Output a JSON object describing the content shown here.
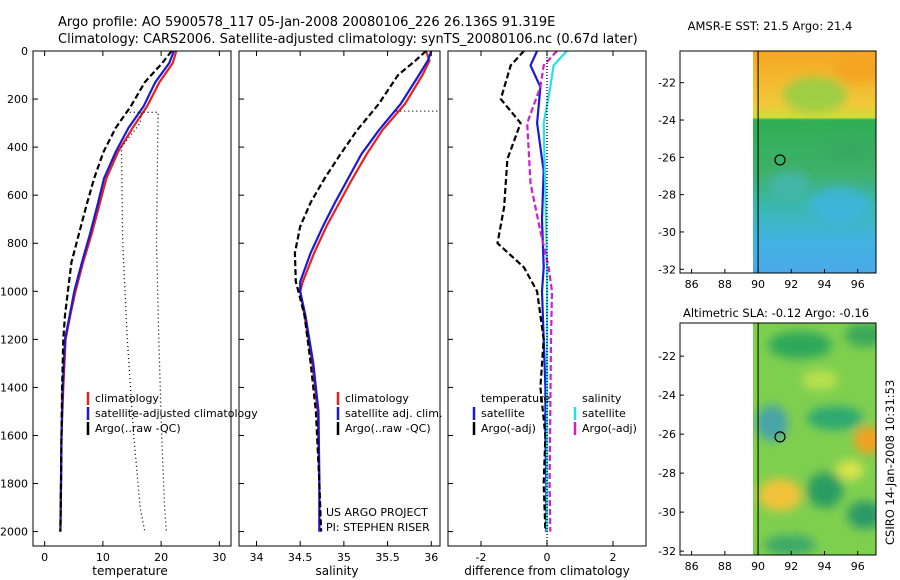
{
  "title": {
    "line1": "Argo profile: AO 5900578_117 05-Jan-2008 20080106_226 26.136S 91.319E",
    "line2": "Climatology: CARS2006. Satellite-adjusted climatology: synTS_20080106.nc (0.67d later)"
  },
  "credit_vertical": "CSIRO 14-Jan-2008 10:31:53",
  "chart_data": [
    {
      "id": "temperature",
      "type": "line",
      "xlabel": "temperature",
      "ylabel": "",
      "xlim": [
        -2,
        32
      ],
      "ylim": [
        0,
        2060
      ],
      "y_inverted": true,
      "xticks": [
        0,
        10,
        20,
        30
      ],
      "yticks": [
        0,
        200,
        400,
        600,
        800,
        1000,
        1200,
        1400,
        1600,
        1800,
        2000
      ],
      "legend": [
        "climatology",
        "satellite-adjusted climatology",
        "Argo(..raw -QC)"
      ],
      "series": [
        {
          "name": "climatology",
          "color": "#e8211c",
          "dash": "",
          "x": [
            22.6,
            22.0,
            19.7,
            17.6,
            15.1,
            12.6,
            10.6,
            9.4,
            8.1,
            6.6,
            5.3,
            4.4,
            3.6,
            3.2,
            2.9,
            2.8,
            2.7
          ],
          "y": [
            0,
            50,
            130,
            230,
            320,
            420,
            530,
            640,
            760,
            880,
            1000,
            1100,
            1200,
            1400,
            1600,
            1800,
            2000
          ]
        },
        {
          "name": "satellite-adjusted climatology",
          "color": "#1a1ad6",
          "dash": "",
          "x": [
            22.2,
            21.4,
            19.0,
            17.0,
            14.4,
            12.2,
            10.2,
            9.1,
            7.8,
            6.4,
            5.1,
            4.3,
            3.5,
            3.1,
            2.9,
            2.8,
            2.7
          ],
          "y": [
            0,
            50,
            130,
            230,
            320,
            420,
            530,
            640,
            760,
            880,
            1000,
            1100,
            1200,
            1400,
            1600,
            1800,
            2000
          ]
        },
        {
          "name": "Argo(..raw -QC)",
          "color": "#000000",
          "dash": "6 3",
          "x": [
            21.8,
            20.2,
            17.2,
            14.8,
            12.2,
            10.1,
            8.5,
            7.2,
            5.9,
            4.6,
            4.0,
            3.5,
            3.2,
            3.0,
            2.9,
            2.8,
            2.7
          ],
          "y": [
            0,
            50,
            130,
            230,
            320,
            420,
            530,
            640,
            760,
            880,
            1000,
            1100,
            1200,
            1400,
            1600,
            1800,
            2000
          ]
        },
        {
          "name": "bound-left",
          "color": "#000000",
          "dash": "1 3",
          "x": [
            14.6,
            16.6,
            16.4,
            13.2,
            13.4,
            14.2,
            15.3,
            16.4,
            17.2
          ],
          "y": [
            255,
            255,
            300,
            400,
            800,
            1200,
            1600,
            1900,
            2000
          ]
        },
        {
          "name": "bound-right",
          "color": "#000000",
          "dash": "1 3",
          "x": [
            17.0,
            19.5,
            19.4,
            19.2,
            19.6,
            20.1,
            20.6,
            20.9
          ],
          "y": [
            255,
            255,
            400,
            800,
            1200,
            1600,
            1900,
            2000
          ]
        }
      ]
    },
    {
      "id": "salinity",
      "type": "line",
      "xlabel": "salinity",
      "xlim": [
        33.8,
        36.1
      ],
      "ylim": [
        0,
        2060
      ],
      "y_inverted": true,
      "xticks": [
        34,
        34.5,
        35,
        35.5,
        36
      ],
      "legend": [
        "climatology",
        "satellite adj. clim.",
        "Argo(..raw -QC)"
      ],
      "annotations": [
        "US ARGO PROJECT",
        "PI: STEPHEN RISER"
      ],
      "series": [
        {
          "name": "climatology",
          "color": "#e8211c",
          "dash": "",
          "x": [
            35.94,
            35.98,
            35.9,
            35.7,
            35.44,
            35.26,
            35.1,
            34.95,
            34.8,
            34.66,
            34.53,
            34.5,
            34.55,
            34.64,
            34.7,
            34.72,
            34.72
          ],
          "y": [
            0,
            40,
            100,
            220,
            330,
            430,
            530,
            630,
            730,
            840,
            960,
            1000,
            1100,
            1300,
            1500,
            1800,
            2000
          ]
        },
        {
          "name": "satellite adj. clim.",
          "color": "#1a1ad6",
          "dash": "",
          "x": [
            36.0,
            35.96,
            35.86,
            35.65,
            35.4,
            35.2,
            35.05,
            34.9,
            34.76,
            34.62,
            34.5,
            34.5,
            34.56,
            34.65,
            34.71,
            34.72,
            34.72
          ],
          "y": [
            0,
            40,
            100,
            220,
            330,
            430,
            530,
            630,
            730,
            840,
            960,
            1000,
            1100,
            1300,
            1500,
            1800,
            2000
          ]
        },
        {
          "name": "Argo(..raw -QC)",
          "color": "#000000",
          "dash": "6 3",
          "x": [
            35.94,
            35.82,
            35.62,
            35.4,
            35.15,
            34.96,
            34.78,
            34.62,
            34.5,
            34.44,
            34.45,
            34.48,
            34.55,
            34.62,
            34.68,
            34.72,
            34.74
          ],
          "y": [
            0,
            40,
            100,
            220,
            330,
            430,
            530,
            630,
            730,
            840,
            960,
            1000,
            1100,
            1300,
            1500,
            1800,
            2000
          ]
        },
        {
          "name": "bound",
          "color": "#000000",
          "dash": "1 3",
          "x": [
            35.6,
            36.1
          ],
          "y": [
            250,
            250
          ]
        }
      ]
    },
    {
      "id": "difference",
      "type": "line",
      "xlabel": "difference from climatology",
      "xlim": [
        -3,
        3
      ],
      "ylim": [
        0,
        2060
      ],
      "y_inverted": true,
      "xticks": [
        -2,
        0,
        2
      ],
      "legend_temperature": {
        "title": "temperature",
        "items": [
          "satellite",
          "Argo(-adj)"
        ]
      },
      "legend_salinity": {
        "title": "salinity",
        "items": [
          "satellite",
          "Argo(-adj)"
        ]
      },
      "series": [
        {
          "name": "temperature satellite",
          "color": "#1a1ad6",
          "dash": "",
          "x": [
            -0.3,
            -0.5,
            -0.2,
            -0.3,
            -0.1,
            -0.15,
            -0.1,
            -0.15,
            -0.1,
            -0.05,
            -0.05,
            -0.02,
            -0.02
          ],
          "y": [
            0,
            60,
            150,
            300,
            500,
            700,
            900,
            1000,
            1200,
            1400,
            1600,
            1800,
            2000
          ]
        },
        {
          "name": "temperature Argo(-adj)",
          "color": "#000000",
          "dash": "6 3",
          "x": [
            -0.7,
            -1.1,
            -1.4,
            -0.8,
            -1.2,
            -1.3,
            -1.5,
            -0.7,
            -0.3,
            -0.1,
            -0.2,
            -0.05,
            -0.1,
            -0.05
          ],
          "y": [
            0,
            60,
            200,
            300,
            450,
            650,
            800,
            900,
            1000,
            1200,
            1400,
            1600,
            1800,
            2000
          ]
        },
        {
          "name": "salinity satellite",
          "color": "#22e0f0",
          "dash": "",
          "x": [
            0.6,
            0.2,
            0.1,
            -0.1,
            -0.05,
            0.0,
            0.0,
            0.0,
            0.0,
            0.0
          ],
          "y": [
            0,
            60,
            150,
            300,
            600,
            900,
            1200,
            1500,
            1800,
            2000
          ]
        },
        {
          "name": "salinity Argo(-adj)",
          "color": "#d21dcf",
          "dash": "6 3",
          "x": [
            0.3,
            -0.1,
            -0.2,
            -0.6,
            -0.5,
            -0.2,
            0.05,
            0.15,
            0.12,
            0.1,
            0.08,
            0.1
          ],
          "y": [
            0,
            60,
            150,
            300,
            550,
            750,
            900,
            1000,
            1200,
            1500,
            1800,
            2000
          ]
        },
        {
          "name": "zero-line",
          "color": "#000000",
          "dash": "1 2",
          "x": [
            0,
            0
          ],
          "y": [
            0,
            2060
          ]
        }
      ]
    },
    {
      "id": "sst-map",
      "type": "heatmap",
      "title": "AMSR-E SST: 21.5 Argo: 21.4",
      "xlim": [
        85.3,
        97.1
      ],
      "ylim": [
        -32.2,
        -20.3
      ],
      "xticks": [
        86,
        88,
        90,
        92,
        94,
        96
      ],
      "yticks": [
        -22,
        -24,
        -26,
        -28,
        -30,
        -32
      ],
      "data_lon_range": [
        90,
        97
      ],
      "marker": {
        "lon": 91.32,
        "lat": -26.14
      }
    },
    {
      "id": "sla-map",
      "type": "heatmap",
      "title": "Altimetric SLA: -0.12 Argo: -0.16",
      "xlim": [
        85.3,
        97.1
      ],
      "ylim": [
        -32.2,
        -20.3
      ],
      "xticks": [
        86,
        88,
        90,
        92,
        94,
        96
      ],
      "yticks": [
        -22,
        -24,
        -26,
        -28,
        -30,
        -32
      ],
      "data_lon_range": [
        90,
        97
      ],
      "marker": {
        "lon": 91.32,
        "lat": -26.14
      }
    }
  ]
}
